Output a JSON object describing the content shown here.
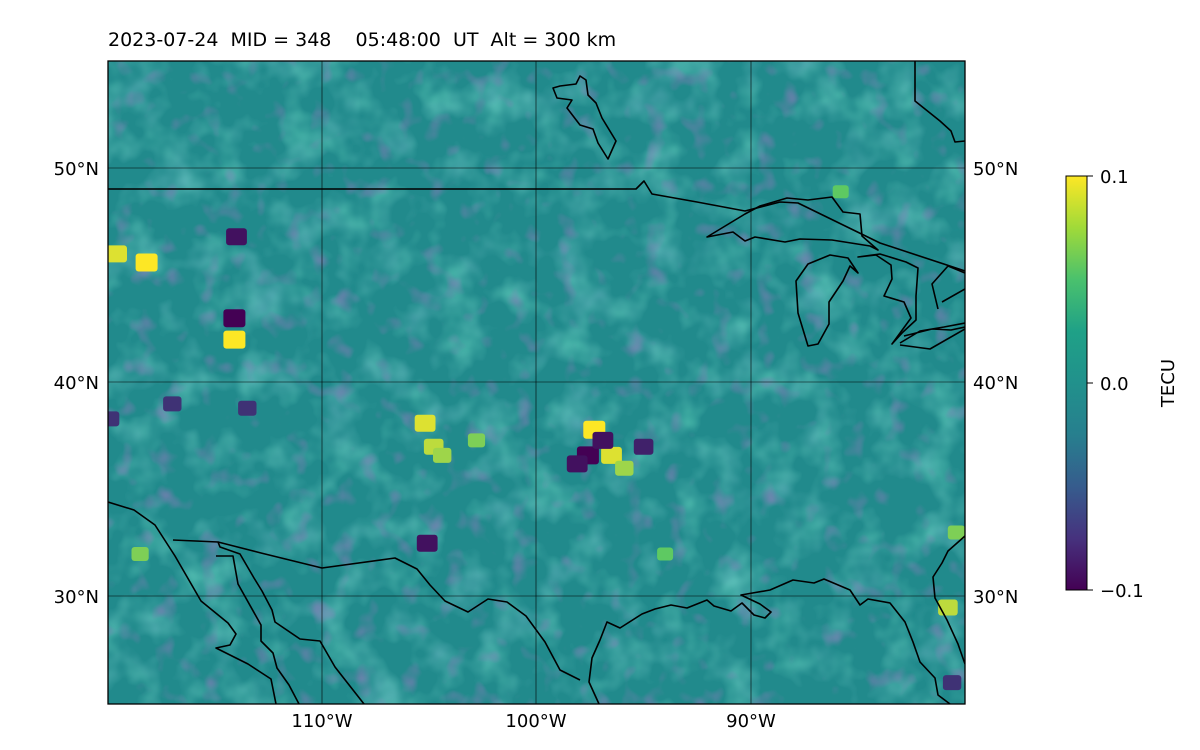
{
  "title": "2023-07-24  MID = 348    05:48:00  UT  Alt = 300 km",
  "map": {
    "lon_range": [
      -120,
      -80
    ],
    "lat_range": [
      25,
      55
    ],
    "lat_labels": [
      "50°N",
      "40°N",
      "30°N"
    ],
    "lon_labels": [
      "110°W",
      "100°W",
      "90°W"
    ],
    "gridlines": true,
    "features": [
      "coastlines",
      "borders",
      "great-lakes"
    ]
  },
  "colorbar": {
    "label": "TECU",
    "colormap": "viridis",
    "ticks": [
      "0.1",
      "0.0",
      "−0.1"
    ],
    "vmin": -0.1,
    "vmax": 0.1
  },
  "anomalies": [
    {
      "lon": -118.2,
      "lat": 45.6,
      "value": 0.1
    },
    {
      "lon": -119.6,
      "lat": 46.0,
      "value": 0.09
    },
    {
      "lon": -114.1,
      "lat": 42.0,
      "value": 0.1
    },
    {
      "lon": -114.1,
      "lat": 43.0,
      "value": -0.1
    },
    {
      "lon": -114.0,
      "lat": 46.8,
      "value": -0.09
    },
    {
      "lon": -118.5,
      "lat": 32.0,
      "value": 0.06
    },
    {
      "lon": -104.8,
      "lat": 37.0,
      "value": 0.08
    },
    {
      "lon": -105.2,
      "lat": 38.1,
      "value": 0.09
    },
    {
      "lon": -104.4,
      "lat": 36.6,
      "value": 0.07
    },
    {
      "lon": -102.8,
      "lat": 37.3,
      "value": 0.06
    },
    {
      "lon": -96.5,
      "lat": 36.6,
      "value": 0.09
    },
    {
      "lon": -97.3,
      "lat": 37.8,
      "value": 0.1
    },
    {
      "lon": -95.9,
      "lat": 36.0,
      "value": 0.07
    },
    {
      "lon": -97.6,
      "lat": 36.6,
      "value": -0.1
    },
    {
      "lon": -98.1,
      "lat": 36.2,
      "value": -0.09
    },
    {
      "lon": -95.0,
      "lat": 37.0,
      "value": -0.08
    },
    {
      "lon": -96.9,
      "lat": 37.3,
      "value": -0.09
    },
    {
      "lon": -105.1,
      "lat": 32.5,
      "value": -0.09
    },
    {
      "lon": -117.0,
      "lat": 39.0,
      "value": -0.07
    },
    {
      "lon": -113.5,
      "lat": 38.8,
      "value": -0.07
    },
    {
      "lon": -119.9,
      "lat": 38.3,
      "value": -0.07
    },
    {
      "lon": -80.8,
      "lat": 29.5,
      "value": 0.08
    },
    {
      "lon": -80.4,
      "lat": 33.0,
      "value": 0.06
    },
    {
      "lon": -80.6,
      "lat": 26.0,
      "value": -0.07
    },
    {
      "lon": -85.8,
      "lat": 48.9,
      "value": 0.05
    },
    {
      "lon": -94.0,
      "lat": 32.0,
      "value": 0.05
    }
  ]
}
